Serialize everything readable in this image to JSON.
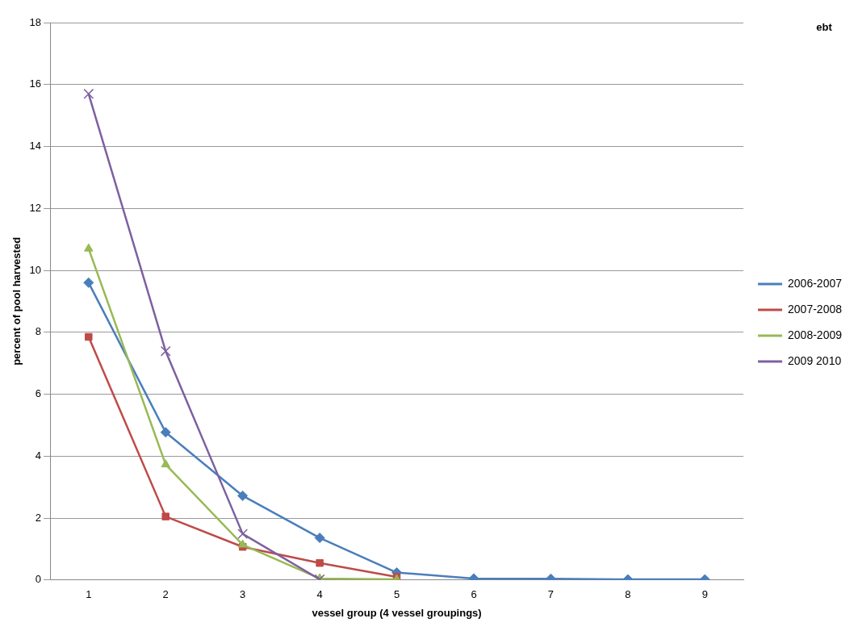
{
  "chart_data": {
    "type": "line",
    "xlabel": "vessel group (4 vessel groupings)",
    "ylabel": "percent of pool harvested",
    "annotations": [
      "ebt"
    ],
    "categories": [
      "1",
      "2",
      "3",
      "4",
      "5",
      "6",
      "7",
      "8",
      "9"
    ],
    "series": [
      {
        "name": "2006-2007",
        "color": "#4a7ebb",
        "marker": "diamond",
        "values": [
          9.6,
          4.77,
          2.72,
          1.36,
          0.24,
          0.05,
          0.04,
          0.02,
          0.02
        ]
      },
      {
        "name": "2007-2008",
        "color": "#be4b48",
        "marker": "square",
        "values": [
          7.85,
          2.05,
          1.07,
          0.55,
          0.1,
          null,
          null,
          null,
          null
        ]
      },
      {
        "name": "2008-2009",
        "color": "#98b954",
        "marker": "triangle",
        "values": [
          10.7,
          3.73,
          1.14,
          0.05,
          0.02,
          null,
          null,
          null,
          null
        ]
      },
      {
        "name": "2009 2010",
        "color": "#7d60a0",
        "marker": "cross",
        "values": [
          15.7,
          7.39,
          1.49,
          0.02,
          null,
          null,
          null,
          null,
          null
        ]
      }
    ],
    "ylim": [
      0,
      18
    ],
    "yticks": [
      0,
      2,
      4,
      6,
      8,
      10,
      12,
      14,
      16,
      18
    ],
    "grid": "y",
    "legend": "right"
  }
}
